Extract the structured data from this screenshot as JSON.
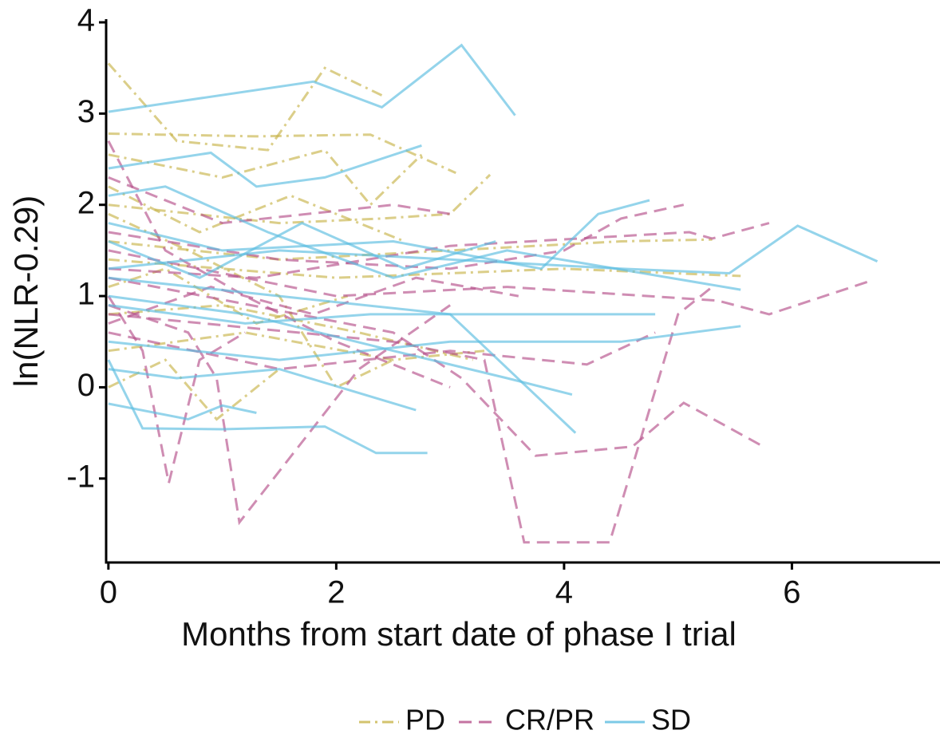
{
  "chart_data": {
    "type": "line",
    "x_label": "Months from start date of phase I trial",
    "y_label": "ln(NLR-0.29)",
    "xlim": [
      -0.02,
      7.3
    ],
    "ylim": [
      -1.92,
      4.0
    ],
    "xticks": [
      0,
      2,
      4,
      6
    ],
    "yticks": [
      -1,
      0,
      1,
      2,
      3,
      4
    ],
    "legend": "bottom",
    "series": [
      {
        "name": "PD",
        "color": "#c8b44a",
        "dash": "dashdot",
        "lines": [
          {
            "x": [
              0,
              0.6,
              1.4,
              1.9,
              2.4
            ],
            "values": [
              3.55,
              2.7,
              2.6,
              3.5,
              3.2
            ]
          },
          {
            "x": [
              0,
              1.3,
              2.3,
              3.05
            ],
            "values": [
              2.78,
              2.75,
              2.77,
              2.35
            ]
          },
          {
            "x": [
              0,
              1.0,
              1.9,
              2.3,
              2.75
            ],
            "values": [
              2.55,
              2.3,
              2.6,
              2.0,
              2.55
            ]
          },
          {
            "x": [
              0,
              1.5,
              2.4,
              3.0,
              3.35
            ],
            "values": [
              2.0,
              1.8,
              1.85,
              1.9,
              2.33
            ]
          },
          {
            "x": [
              0,
              1.5,
              3.0,
              4.5,
              5.3
            ],
            "values": [
              1.6,
              1.4,
              1.5,
              1.6,
              1.62
            ]
          },
          {
            "x": [
              0,
              2.0,
              4.0,
              5.55
            ],
            "values": [
              1.4,
              1.2,
              1.3,
              1.22
            ]
          },
          {
            "x": [
              0,
              0.5,
              0.95,
              1.5
            ],
            "values": [
              0.0,
              0.3,
              -0.35,
              0.2
            ]
          },
          {
            "x": [
              0,
              1.2,
              2.5,
              3.3
            ],
            "values": [
              0.4,
              0.6,
              0.3,
              0.4
            ]
          },
          {
            "x": [
              0,
              0.7,
              1.5,
              2.0,
              2.5
            ],
            "values": [
              1.9,
              1.5,
              1.0,
              0.0,
              0.3
            ]
          },
          {
            "x": [
              0,
              1.0,
              2.2,
              3.2
            ],
            "values": [
              0.8,
              0.9,
              0.6,
              0.3
            ]
          },
          {
            "x": [
              0,
              0.8,
              1.6,
              2.6
            ],
            "values": [
              2.2,
              1.7,
              2.1,
              1.6
            ]
          },
          {
            "x": [
              0,
              0.5,
              1.3,
              2.1
            ],
            "values": [
              1.1,
              1.3,
              0.7,
              1.0
            ]
          }
        ]
      },
      {
        "name": "CR/PR",
        "color": "#b5508a",
        "dash": "dashed",
        "lines": [
          {
            "x": [
              0,
              0.3,
              0.53,
              0.8,
              1.2
            ],
            "values": [
              1.0,
              0.4,
              -1.05,
              0.3,
              0.6
            ]
          },
          {
            "x": [
              0,
              0.7,
              0.95,
              1.15,
              2.2,
              3.0
            ],
            "values": [
              0.9,
              0.6,
              0.1,
              -1.48,
              0.2,
              0.9
            ]
          },
          {
            "x": [
              0,
              2.5,
              3.3,
              3.65,
              4.4,
              5.0,
              5.3
            ],
            "values": [
              0.8,
              0.5,
              0.3,
              -1.7,
              -1.7,
              0.8,
              1.1
            ]
          },
          {
            "x": [
              0,
              2.5,
              3.1,
              3.75,
              4.6,
              5.05,
              5.75
            ],
            "values": [
              1.2,
              0.6,
              0.1,
              -0.75,
              -0.65,
              -0.17,
              -0.65
            ]
          },
          {
            "x": [
              0,
              2.0,
              3.5,
              5.35,
              5.8,
              6.7
            ],
            "values": [
              1.5,
              1.0,
              1.1,
              0.95,
              0.8,
              1.17
            ]
          },
          {
            "x": [
              0,
              1.0,
              2.5,
              3.0
            ],
            "values": [
              2.3,
              1.8,
              2.0,
              1.9
            ]
          },
          {
            "x": [
              0,
              1.5,
              3.0,
              4.0,
              4.5,
              5.05
            ],
            "values": [
              1.7,
              1.4,
              1.3,
              1.5,
              1.85,
              2.0
            ]
          },
          {
            "x": [
              0,
              1.3,
              3.0,
              5.1,
              5.3,
              5.8
            ],
            "values": [
              1.3,
              1.2,
              1.55,
              1.7,
              1.63,
              1.8
            ]
          },
          {
            "x": [
              0,
              1.5,
              3.0,
              4.2,
              4.8
            ],
            "values": [
              0.6,
              0.2,
              0.4,
              0.25,
              0.6
            ]
          },
          {
            "x": [
              0,
              0.5,
              1.2,
              2.0,
              3.0
            ],
            "values": [
              2.7,
              1.5,
              1.0,
              0.5,
              0.0
            ]
          },
          {
            "x": [
              0,
              0.9,
              1.8,
              2.7,
              3.6
            ],
            "values": [
              0.7,
              1.1,
              0.8,
              1.2,
              1.0
            ]
          }
        ]
      },
      {
        "name": "SD",
        "color": "#5bbde0",
        "dash": "solid",
        "lines": [
          {
            "x": [
              0,
              1.8,
              2.4,
              3.1,
              3.57
            ],
            "values": [
              3.02,
              3.35,
              3.07,
              3.75,
              2.98
            ]
          },
          {
            "x": [
              0,
              0.9,
              1.3,
              1.9,
              2.75
            ],
            "values": [
              2.4,
              2.57,
              2.2,
              2.3,
              2.65
            ]
          },
          {
            "x": [
              0,
              0.7,
              1.0,
              1.3
            ],
            "values": [
              -0.18,
              -0.35,
              -0.2,
              -0.28
            ]
          },
          {
            "x": [
              0,
              0.3,
              1.0,
              1.9,
              2.35,
              2.8
            ],
            "values": [
              0.3,
              -0.45,
              -0.46,
              -0.43,
              -0.72,
              -0.72
            ]
          },
          {
            "x": [
              0,
              1.5,
              3.0,
              4.5,
              5.45,
              6.05,
              6.75
            ],
            "values": [
              1.3,
              1.5,
              1.4,
              1.3,
              1.25,
              1.77,
              1.38
            ]
          },
          {
            "x": [
              0,
              1.0,
              2.5,
              3.8,
              4.3,
              4.75
            ],
            "values": [
              1.8,
              1.5,
              1.6,
              1.3,
              1.9,
              2.05
            ]
          },
          {
            "x": [
              0,
              1.2,
              2.3,
              3.5,
              4.8
            ],
            "values": [
              0.9,
              0.7,
              0.8,
              0.8,
              0.8
            ]
          },
          {
            "x": [
              0,
              1.5,
              3.0,
              4.5,
              5.55
            ],
            "values": [
              0.5,
              0.3,
              0.5,
              0.5,
              0.67
            ]
          },
          {
            "x": [
              0,
              1.5,
              3.0,
              4.1
            ],
            "values": [
              1.2,
              1.0,
              0.8,
              -0.5
            ]
          },
          {
            "x": [
              0,
              1.2,
              2.5,
              3.5,
              4.07
            ],
            "values": [
              1.0,
              0.8,
              0.4,
              0.1,
              -0.08
            ]
          },
          {
            "x": [
              0,
              0.5,
              1.4,
              2.5,
              3.5,
              5.55
            ],
            "values": [
              2.1,
              2.2,
              1.7,
              1.2,
              1.5,
              1.07
            ]
          },
          {
            "x": [
              0,
              0.6,
              1.5,
              2.7
            ],
            "values": [
              0.2,
              0.1,
              0.2,
              -0.25
            ]
          },
          {
            "x": [
              0,
              0.8,
              1.7,
              2.6,
              3.4
            ],
            "values": [
              1.6,
              1.2,
              1.8,
              1.3,
              1.6
            ]
          }
        ]
      }
    ]
  }
}
